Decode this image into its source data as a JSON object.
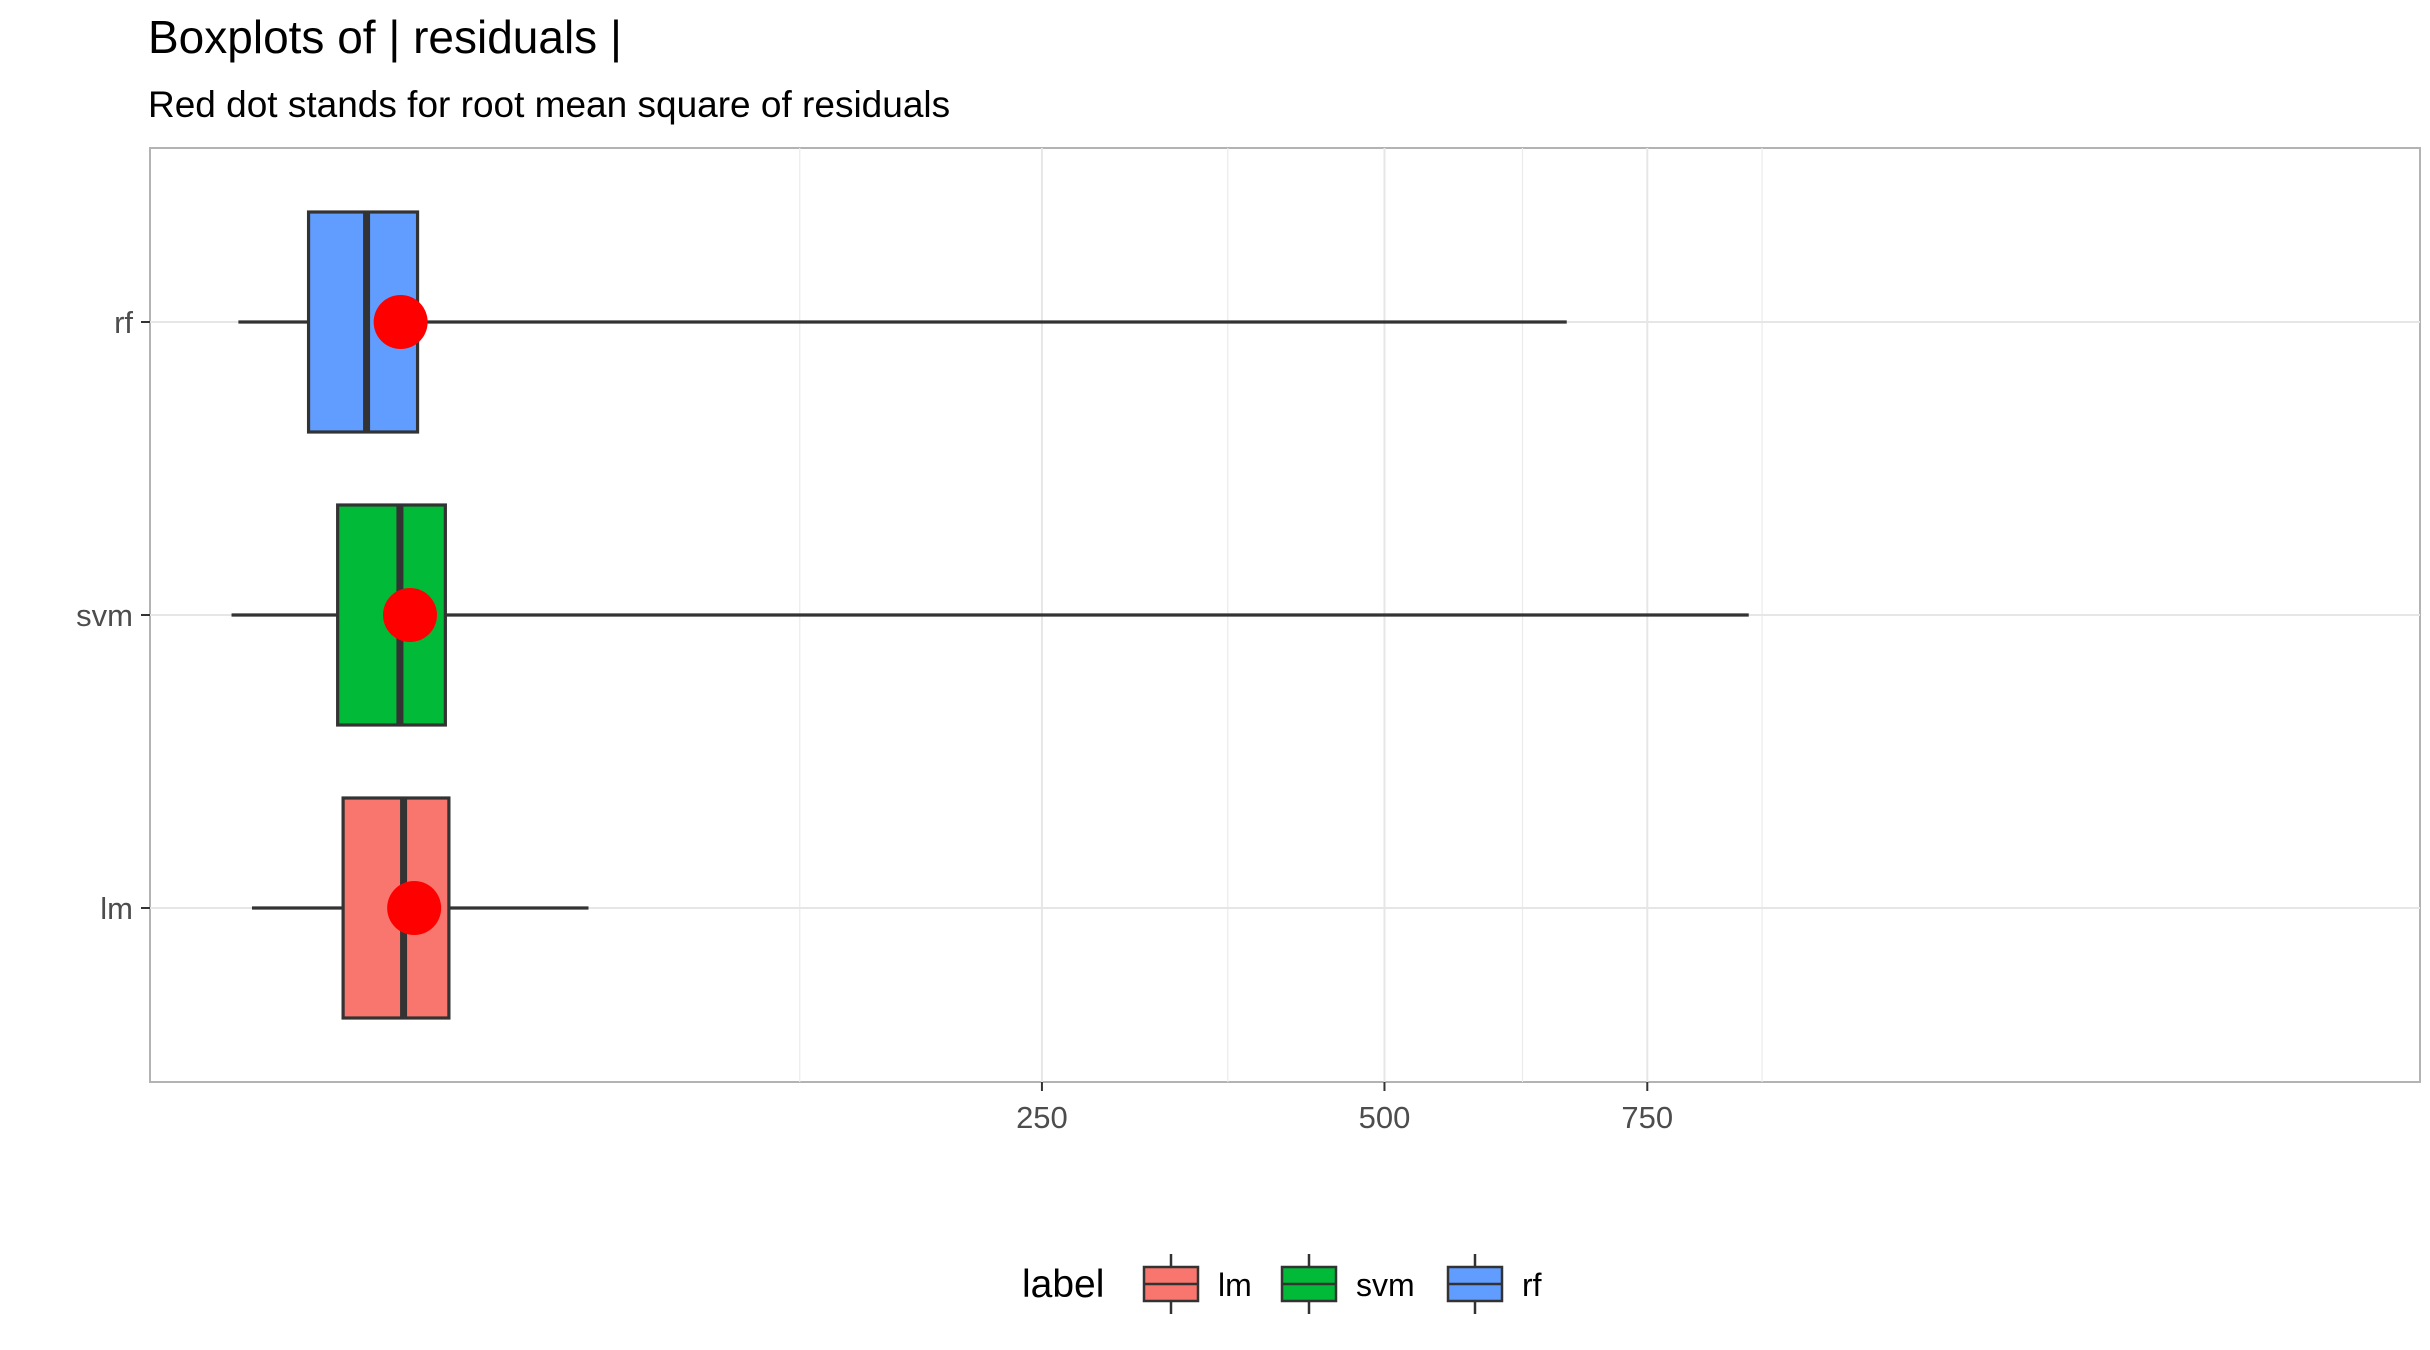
{
  "chart_data": {
    "type": "boxplot",
    "title": "Boxplots of | residuals |",
    "subtitle": "Red dot stands for root mean square of residuals",
    "xlabel": "",
    "ylabel": "",
    "x_scale": "sqrt",
    "xlim": [
      0,
      900
    ],
    "x_ticks": [
      250,
      500,
      750
    ],
    "x_tick_labels": [
      "250",
      "500",
      "750"
    ],
    "categories": [
      "lm",
      "svm",
      "rf"
    ],
    "series": [
      {
        "name": "lm",
        "color": "#F8766D",
        "whisker_low": 0.5,
        "q1": 6,
        "median": 13,
        "q3": 20,
        "whisker_high": 51,
        "rms": 14.5
      },
      {
        "name": "svm",
        "color": "#00BA38",
        "whisker_low": 0.1,
        "q1": 5.5,
        "median": 12.5,
        "q3": 19.4,
        "whisker_high": 860,
        "rms": 13.9
      },
      {
        "name": "rf",
        "color": "#619CFF",
        "whisker_low": 0.2,
        "q1": 3.2,
        "median": 8.4,
        "q3": 15,
        "whisker_high": 668,
        "rms": 12.6
      }
    ],
    "rms_color": "#FF0000",
    "grid": true,
    "legend": {
      "title": "label",
      "position": "bottom",
      "items": [
        "lm",
        "svm",
        "rf"
      ]
    }
  }
}
